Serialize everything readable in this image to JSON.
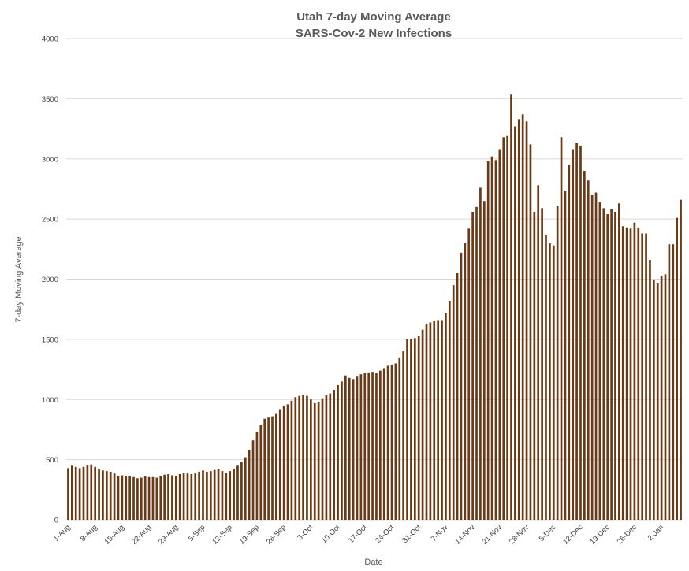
{
  "chart_data": {
    "type": "bar",
    "title": "Utah 7-day Moving Average",
    "subtitle": "SARS-Cov-2 New Infections",
    "xlabel": "Date",
    "ylabel": "7-day Moving Average",
    "ylim": [
      0,
      4000
    ],
    "yticks": [
      0,
      500,
      1000,
      1500,
      2000,
      2500,
      3000,
      3500,
      4000
    ],
    "grid": true,
    "legend": "none",
    "bar_color": "#6b3a14",
    "x_ticks": [
      {
        "index": 0,
        "label": "1-Aug"
      },
      {
        "index": 7,
        "label": "8-Aug"
      },
      {
        "index": 14,
        "label": "15-Aug"
      },
      {
        "index": 21,
        "label": "22-Aug"
      },
      {
        "index": 28,
        "label": "29-Aug"
      },
      {
        "index": 35,
        "label": "5-Sep"
      },
      {
        "index": 42,
        "label": "12-Sep"
      },
      {
        "index": 49,
        "label": "19-Sep"
      },
      {
        "index": 56,
        "label": "26-Sep"
      },
      {
        "index": 63,
        "label": "3-Oct"
      },
      {
        "index": 70,
        "label": "10-Oct"
      },
      {
        "index": 77,
        "label": "17-Oct"
      },
      {
        "index": 84,
        "label": "24-Oct"
      },
      {
        "index": 91,
        "label": "31-Oct"
      },
      {
        "index": 98,
        "label": "7-Nov"
      },
      {
        "index": 105,
        "label": "14-Nov"
      },
      {
        "index": 112,
        "label": "21-Nov"
      },
      {
        "index": 119,
        "label": "28-Nov"
      },
      {
        "index": 126,
        "label": "5-Dec"
      },
      {
        "index": 133,
        "label": "12-Dec"
      },
      {
        "index": 140,
        "label": "19-Dec"
      },
      {
        "index": 147,
        "label": "26-Dec"
      },
      {
        "index": 154,
        "label": "2-Jan"
      }
    ],
    "values": [
      430,
      450,
      440,
      430,
      440,
      455,
      460,
      440,
      420,
      410,
      405,
      400,
      385,
      365,
      370,
      365,
      360,
      355,
      345,
      350,
      360,
      355,
      355,
      350,
      360,
      375,
      380,
      370,
      365,
      380,
      390,
      385,
      380,
      385,
      400,
      410,
      400,
      405,
      415,
      420,
      405,
      390,
      405,
      425,
      450,
      480,
      520,
      580,
      660,
      730,
      790,
      840,
      850,
      860,
      880,
      920,
      950,
      960,
      990,
      1020,
      1030,
      1040,
      1030,
      1000,
      970,
      980,
      1010,
      1040,
      1050,
      1080,
      1120,
      1150,
      1200,
      1180,
      1170,
      1190,
      1210,
      1220,
      1225,
      1230,
      1220,
      1240,
      1260,
      1280,
      1290,
      1300,
      1350,
      1400,
      1500,
      1505,
      1510,
      1530,
      1580,
      1630,
      1640,
      1650,
      1660,
      1660,
      1720,
      1820,
      1950,
      2050,
      2220,
      2300,
      2420,
      2560,
      2600,
      2760,
      2650,
      2980,
      3020,
      2990,
      3080,
      3180,
      3190,
      3540,
      3270,
      3330,
      3370,
      3310,
      3120,
      2560,
      2780,
      2590,
      2370,
      2300,
      2280,
      2610,
      3180,
      2730,
      2950,
      3080,
      3130,
      3110,
      2900,
      2820,
      2700,
      2720,
      2640,
      2590,
      2540,
      2580,
      2560,
      2630,
      2440,
      2430,
      2420,
      2470,
      2430,
      2380,
      2380,
      2160,
      1990,
      1970,
      2030,
      2040,
      2290,
      2290,
      2510,
      2660
    ]
  }
}
